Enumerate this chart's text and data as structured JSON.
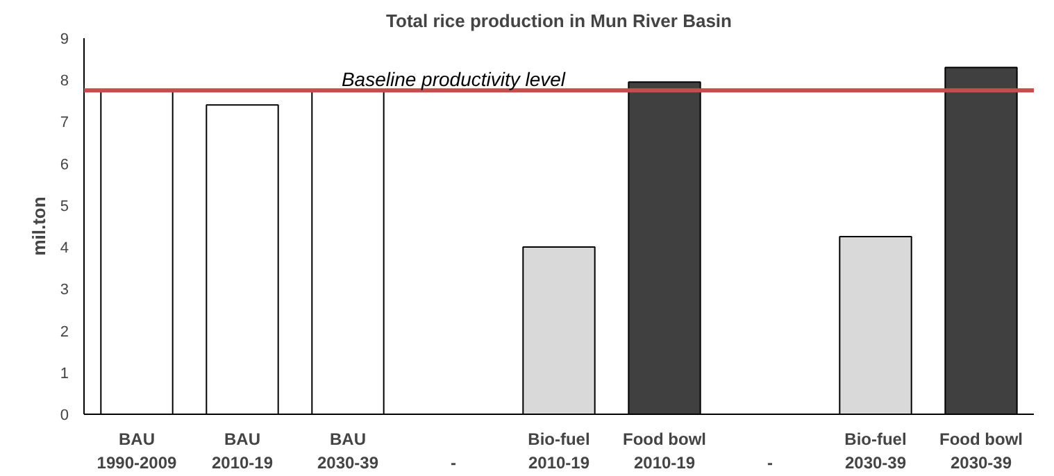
{
  "chart_data": {
    "type": "bar",
    "title": "Total rice production in Mun River Basin",
    "ylabel": "mil.ton",
    "categories": [
      "BAU\n1990-2009",
      "BAU\n2010-19",
      "BAU\n2030-39",
      "\n-",
      "Bio-fuel\n2010-19",
      "Food bowl\n2010-19",
      "\n-",
      "Bio-fuel\n2030-39",
      "Food bowl\n2030-39"
    ],
    "values": [
      7.75,
      7.4,
      7.75,
      null,
      4.0,
      7.95,
      null,
      4.25,
      8.3
    ],
    "colors": [
      "#ffffff",
      "#ffffff",
      "#ffffff",
      "#ffffff",
      "#d9d9d9",
      "#404040",
      "#ffffff",
      "#d9d9d9",
      "#404040"
    ],
    "ylim": [
      0,
      9
    ],
    "yticks": [
      0,
      1,
      2,
      3,
      4,
      5,
      6,
      7,
      8,
      9
    ],
    "grid": false,
    "ref_lines": [
      {
        "axis": "y",
        "value": 7.75,
        "label": "Baseline productivity level",
        "color": "#c0504d",
        "line_style": "solid"
      }
    ]
  }
}
